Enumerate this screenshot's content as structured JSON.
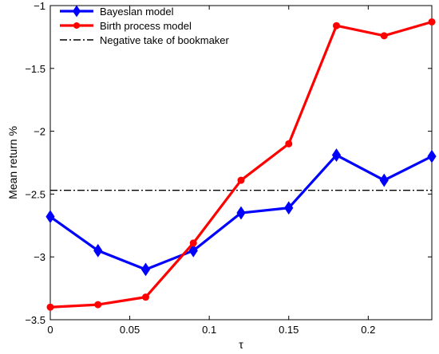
{
  "chart_data": {
    "type": "line",
    "xlabel": "τ",
    "ylabel": "Mean return %",
    "xlim": [
      0,
      0.24
    ],
    "ylim": [
      -3.5,
      -1
    ],
    "x_ticks": [
      0,
      0.05,
      0.1,
      0.15,
      0.2
    ],
    "x_tick_labels": [
      "0",
      "0.05",
      "0.1",
      "0.15",
      "0.2"
    ],
    "y_ticks": [
      -3.5,
      -3,
      -2.5,
      -2,
      -1.5,
      -1
    ],
    "y_tick_labels": [
      "−3.5",
      "−3",
      "−2.5",
      "−2",
      "−1.5",
      "−1"
    ],
    "grid": false,
    "legend_position": "top-left",
    "x": [
      0,
      0.03,
      0.06,
      0.09,
      0.12,
      0.15,
      0.18,
      0.21,
      0.24
    ],
    "series": [
      {
        "name": "Bayesian model",
        "color": "#0000ff",
        "marker": "diamond",
        "values": [
          -2.68,
          -2.95,
          -3.1,
          -2.95,
          -2.65,
          -2.61,
          -2.19,
          -2.39,
          -2.2
        ]
      },
      {
        "name": "Birth process model",
        "color": "#ff0000",
        "marker": "circle",
        "values": [
          -3.4,
          -3.38,
          -3.32,
          -2.89,
          -2.39,
          -2.1,
          -1.16,
          -1.24,
          -1.13
        ]
      }
    ],
    "reference_line": {
      "name": "Negative take of bookmaker",
      "color": "#000000",
      "style": "dash-dot",
      "value": -2.47
    }
  }
}
